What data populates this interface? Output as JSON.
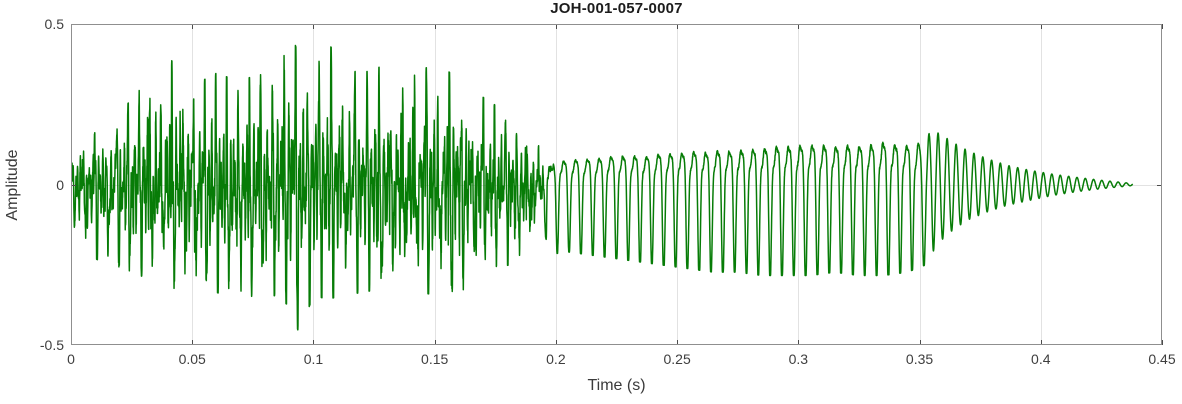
{
  "chart_data": {
    "type": "line",
    "subtype": "audio-waveform",
    "title": "JOH-001-057-0007",
    "xlabel": "Time (s)",
    "ylabel": "Amplitude",
    "xlim": [
      0,
      0.45
    ],
    "ylim": [
      -0.5,
      0.5
    ],
    "x_ticks": [
      0,
      0.05,
      0.1,
      0.15,
      0.2,
      0.25,
      0.3,
      0.35,
      0.4,
      0.45
    ],
    "x_tick_labels": [
      "0",
      "0.05",
      "0.1",
      "0.15",
      "0.2",
      "0.25",
      "0.3",
      "0.35",
      "0.4",
      "0.45"
    ],
    "y_ticks": [
      -0.5,
      0,
      0.5
    ],
    "y_tick_labels": [
      "-0.5",
      "0",
      "0.5"
    ],
    "grid": {
      "vertical_at_x_ticks": true,
      "horizontal_at_zero": true
    },
    "colors": {
      "line": "#077c07",
      "grid": "#e2e2e2",
      "axis_box": "#8f8f8f",
      "tick_mark": "#4c4c4c",
      "tick_label": "#3e3e3e",
      "title": "#1c1c1c"
    },
    "signal": {
      "duration_s": 0.438,
      "peak_amplitude": 0.47,
      "peak_time_s": 0.092,
      "segments": [
        {
          "type": "voiced-noisy",
          "t_start": 0.0,
          "t_end": 0.195,
          "f0_hz": 212
        },
        {
          "type": "vowel-periodic",
          "t_start": 0.195,
          "t_end": 0.3525,
          "f0_hz": 205
        },
        {
          "type": "decaying-ring",
          "t_start": 0.3525,
          "t_end": 0.438,
          "f0_hz": 265
        }
      ],
      "envelope_t_up_down": [
        [
          0.0,
          0.08,
          0.1
        ],
        [
          0.004,
          0.15,
          0.2
        ],
        [
          0.01,
          0.16,
          0.22
        ],
        [
          0.016,
          0.15,
          0.24
        ],
        [
          0.022,
          0.22,
          0.25
        ],
        [
          0.028,
          0.3,
          0.27
        ],
        [
          0.034,
          0.32,
          0.28
        ],
        [
          0.04,
          0.38,
          0.3
        ],
        [
          0.046,
          0.33,
          0.32
        ],
        [
          0.052,
          0.3,
          0.33
        ],
        [
          0.06,
          0.33,
          0.32
        ],
        [
          0.068,
          0.31,
          0.34
        ],
        [
          0.076,
          0.32,
          0.33
        ],
        [
          0.084,
          0.34,
          0.33
        ],
        [
          0.09,
          0.47,
          0.36
        ],
        [
          0.094,
          0.38,
          0.44
        ],
        [
          0.1,
          0.34,
          0.33
        ],
        [
          0.106,
          0.42,
          0.34
        ],
        [
          0.112,
          0.36,
          0.33
        ],
        [
          0.12,
          0.33,
          0.32
        ],
        [
          0.128,
          0.35,
          0.31
        ],
        [
          0.136,
          0.37,
          0.33
        ],
        [
          0.144,
          0.34,
          0.32
        ],
        [
          0.152,
          0.36,
          0.33
        ],
        [
          0.158,
          0.32,
          0.33
        ],
        [
          0.165,
          0.28,
          0.3
        ],
        [
          0.172,
          0.25,
          0.27
        ],
        [
          0.18,
          0.21,
          0.24
        ],
        [
          0.188,
          0.17,
          0.22
        ],
        [
          0.195,
          0.15,
          0.21
        ],
        [
          0.205,
          0.14,
          0.2
        ],
        [
          0.215,
          0.15,
          0.21
        ],
        [
          0.225,
          0.16,
          0.22
        ],
        [
          0.235,
          0.16,
          0.23
        ],
        [
          0.245,
          0.17,
          0.24
        ],
        [
          0.255,
          0.18,
          0.25
        ],
        [
          0.265,
          0.19,
          0.26
        ],
        [
          0.275,
          0.2,
          0.26
        ],
        [
          0.285,
          0.21,
          0.27
        ],
        [
          0.295,
          0.22,
          0.27
        ],
        [
          0.305,
          0.22,
          0.27
        ],
        [
          0.315,
          0.22,
          0.26
        ],
        [
          0.325,
          0.23,
          0.27
        ],
        [
          0.335,
          0.23,
          0.27
        ],
        [
          0.345,
          0.22,
          0.26
        ],
        [
          0.352,
          0.2,
          0.24
        ],
        [
          0.358,
          0.16,
          0.18
        ],
        [
          0.364,
          0.13,
          0.14
        ],
        [
          0.37,
          0.105,
          0.11
        ],
        [
          0.378,
          0.08,
          0.085
        ],
        [
          0.386,
          0.06,
          0.065
        ],
        [
          0.395,
          0.045,
          0.05
        ],
        [
          0.405,
          0.032,
          0.034
        ],
        [
          0.415,
          0.022,
          0.022
        ],
        [
          0.425,
          0.013,
          0.013
        ],
        [
          0.433,
          0.007,
          0.007
        ],
        [
          0.438,
          0.003,
          0.003
        ]
      ]
    }
  }
}
